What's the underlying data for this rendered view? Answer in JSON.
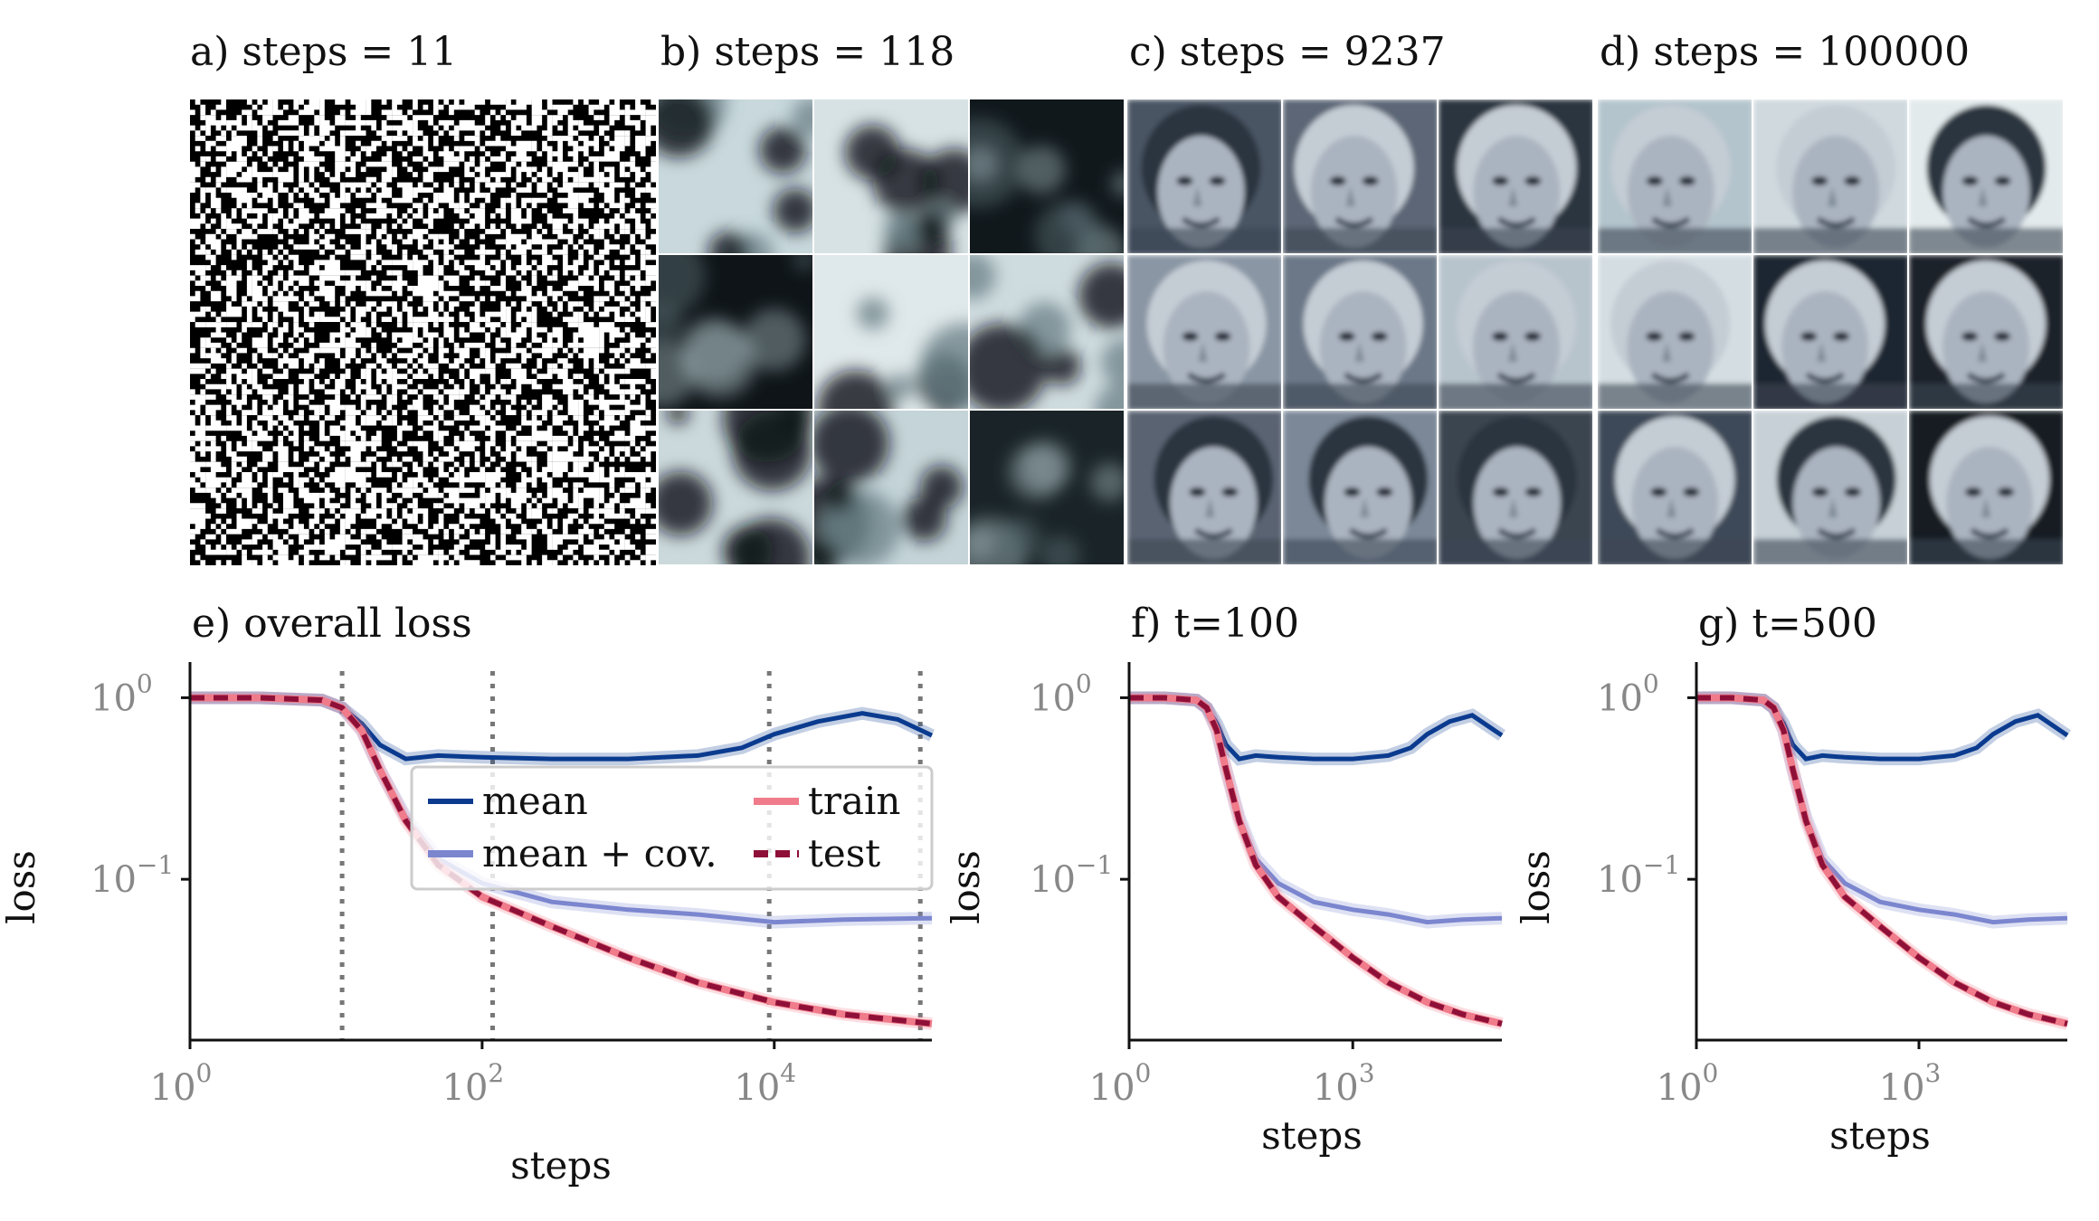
{
  "figure": {
    "panels_top": [
      {
        "title": "a) steps = 11",
        "kind": "noise"
      },
      {
        "title": "b) steps = 118",
        "kind": "blobs"
      },
      {
        "title": "c) steps = 9237",
        "kind": "faces"
      },
      {
        "title": "d) steps = 100000",
        "kind": "faces"
      }
    ]
  },
  "chart_data": [
    {
      "type": "line",
      "title": "e) overall loss",
      "xlabel": "steps",
      "ylabel": "loss",
      "xscale": "log",
      "yscale": "log",
      "xlim": [
        1,
        120000
      ],
      "ylim": [
        0.013,
        1.25
      ],
      "xticks": [
        {
          "value": 1,
          "base": "10",
          "exp": "0"
        },
        {
          "value": 100,
          "base": "10",
          "exp": "2"
        },
        {
          "value": 10000,
          "base": "10",
          "exp": "4"
        }
      ],
      "yticks": [
        {
          "value": 1,
          "base": "10",
          "exp": "0"
        },
        {
          "value": 0.1,
          "base": "10",
          "exp": "−1"
        }
      ],
      "vlines": [
        11,
        118,
        9237,
        100000
      ],
      "legend": {
        "position": "center",
        "entries": [
          "mean",
          "mean + cov.",
          "train",
          "test"
        ]
      },
      "series": [
        {
          "name": "mean",
          "color": "#0a3b8f",
          "x": [
            1,
            3,
            8,
            11,
            15,
            20,
            30,
            50,
            100,
            300,
            1000,
            3000,
            6000,
            10000,
            20000,
            40000,
            70000,
            120000
          ],
          "y": [
            1.0,
            1.0,
            0.97,
            0.88,
            0.72,
            0.55,
            0.46,
            0.48,
            0.47,
            0.46,
            0.46,
            0.48,
            0.53,
            0.63,
            0.74,
            0.82,
            0.76,
            0.62
          ]
        },
        {
          "name": "mean + cov.",
          "color": "#7b86cf",
          "x": [
            1,
            3,
            8,
            11,
            15,
            20,
            30,
            50,
            100,
            300,
            1000,
            3000,
            10000,
            30000,
            120000
          ],
          "y": [
            1.0,
            1.0,
            0.97,
            0.88,
            0.66,
            0.4,
            0.22,
            0.13,
            0.095,
            0.075,
            0.068,
            0.064,
            0.058,
            0.06,
            0.061
          ]
        },
        {
          "name": "train",
          "color": "#f07b8a",
          "x": [
            1,
            3,
            8,
            11,
            15,
            20,
            30,
            50,
            100,
            300,
            1000,
            3000,
            10000,
            30000,
            120000
          ],
          "y": [
            1.0,
            1.0,
            0.97,
            0.88,
            0.66,
            0.4,
            0.21,
            0.12,
            0.08,
            0.055,
            0.037,
            0.027,
            0.021,
            0.018,
            0.016
          ]
        },
        {
          "name": "test",
          "color": "#8e1038",
          "x": [
            1,
            3,
            8,
            11,
            15,
            20,
            30,
            50,
            100,
            300,
            1000,
            3000,
            10000,
            30000,
            120000
          ],
          "y": [
            1.0,
            1.0,
            0.97,
            0.88,
            0.66,
            0.4,
            0.21,
            0.12,
            0.08,
            0.055,
            0.037,
            0.027,
            0.021,
            0.018,
            0.016
          ]
        }
      ]
    },
    {
      "type": "line",
      "title": "f) t=100",
      "xlabel": "steps",
      "ylabel": "loss",
      "xscale": "log",
      "yscale": "log",
      "xlim": [
        1,
        100000
      ],
      "ylim": [
        0.013,
        1.25
      ],
      "xticks": [
        {
          "value": 1,
          "base": "10",
          "exp": "0"
        },
        {
          "value": 1000,
          "base": "10",
          "exp": "3"
        }
      ],
      "yticks": [
        {
          "value": 1,
          "base": "10",
          "exp": "0"
        },
        {
          "value": 0.1,
          "base": "10",
          "exp": "−1"
        }
      ],
      "series": [
        {
          "name": "mean",
          "color": "#0a3b8f",
          "x": [
            1,
            3,
            8,
            11,
            15,
            20,
            30,
            50,
            100,
            300,
            1000,
            3000,
            6000,
            10000,
            20000,
            40000,
            100000
          ],
          "y": [
            1.0,
            1.0,
            0.97,
            0.88,
            0.72,
            0.55,
            0.46,
            0.48,
            0.47,
            0.46,
            0.46,
            0.48,
            0.53,
            0.63,
            0.74,
            0.8,
            0.62
          ]
        },
        {
          "name": "mean + cov.",
          "color": "#7b86cf",
          "x": [
            1,
            3,
            8,
            11,
            15,
            20,
            30,
            50,
            100,
            300,
            1000,
            3000,
            10000,
            30000,
            100000
          ],
          "y": [
            1.0,
            1.0,
            0.97,
            0.88,
            0.66,
            0.4,
            0.22,
            0.13,
            0.095,
            0.075,
            0.068,
            0.064,
            0.058,
            0.06,
            0.061
          ]
        },
        {
          "name": "train",
          "color": "#f07b8a",
          "x": [
            1,
            3,
            8,
            11,
            15,
            20,
            30,
            50,
            100,
            300,
            1000,
            3000,
            10000,
            30000,
            100000
          ],
          "y": [
            1.0,
            1.0,
            0.97,
            0.88,
            0.66,
            0.4,
            0.21,
            0.12,
            0.08,
            0.055,
            0.037,
            0.027,
            0.021,
            0.018,
            0.016
          ]
        },
        {
          "name": "test",
          "color": "#8e1038",
          "x": [
            1,
            3,
            8,
            11,
            15,
            20,
            30,
            50,
            100,
            300,
            1000,
            3000,
            10000,
            30000,
            100000
          ],
          "y": [
            1.0,
            1.0,
            0.97,
            0.88,
            0.66,
            0.4,
            0.21,
            0.12,
            0.08,
            0.055,
            0.037,
            0.027,
            0.021,
            0.018,
            0.016
          ]
        }
      ]
    },
    {
      "type": "line",
      "title": "g) t=500",
      "xlabel": "steps",
      "ylabel": "loss",
      "xscale": "log",
      "yscale": "log",
      "xlim": [
        1,
        100000
      ],
      "ylim": [
        0.013,
        1.25
      ],
      "xticks": [
        {
          "value": 1,
          "base": "10",
          "exp": "0"
        },
        {
          "value": 1000,
          "base": "10",
          "exp": "3"
        }
      ],
      "yticks": [
        {
          "value": 1,
          "base": "10",
          "exp": "0"
        },
        {
          "value": 0.1,
          "base": "10",
          "exp": "−1"
        }
      ],
      "series": [
        {
          "name": "mean",
          "color": "#0a3b8f",
          "x": [
            1,
            3,
            8,
            11,
            15,
            20,
            30,
            50,
            100,
            300,
            1000,
            3000,
            6000,
            10000,
            20000,
            40000,
            100000
          ],
          "y": [
            1.0,
            1.0,
            0.97,
            0.88,
            0.72,
            0.55,
            0.46,
            0.48,
            0.47,
            0.46,
            0.46,
            0.48,
            0.53,
            0.63,
            0.74,
            0.8,
            0.62
          ]
        },
        {
          "name": "mean + cov.",
          "color": "#7b86cf",
          "x": [
            1,
            3,
            8,
            11,
            15,
            20,
            30,
            50,
            100,
            300,
            1000,
            3000,
            10000,
            30000,
            100000
          ],
          "y": [
            1.0,
            1.0,
            0.97,
            0.88,
            0.66,
            0.4,
            0.22,
            0.13,
            0.095,
            0.075,
            0.068,
            0.064,
            0.058,
            0.06,
            0.061
          ]
        },
        {
          "name": "train",
          "color": "#f07b8a",
          "x": [
            1,
            3,
            8,
            11,
            15,
            20,
            30,
            50,
            100,
            300,
            1000,
            3000,
            10000,
            30000,
            100000
          ],
          "y": [
            1.0,
            1.0,
            0.97,
            0.88,
            0.66,
            0.4,
            0.21,
            0.12,
            0.08,
            0.055,
            0.037,
            0.027,
            0.021,
            0.018,
            0.016
          ]
        },
        {
          "name": "test",
          "color": "#8e1038",
          "x": [
            1,
            3,
            8,
            11,
            15,
            20,
            30,
            50,
            100,
            300,
            1000,
            3000,
            10000,
            30000,
            100000
          ],
          "y": [
            1.0,
            1.0,
            0.97,
            0.88,
            0.66,
            0.4,
            0.21,
            0.12,
            0.08,
            0.055,
            0.037,
            0.027,
            0.021,
            0.018,
            0.016
          ]
        }
      ]
    }
  ]
}
